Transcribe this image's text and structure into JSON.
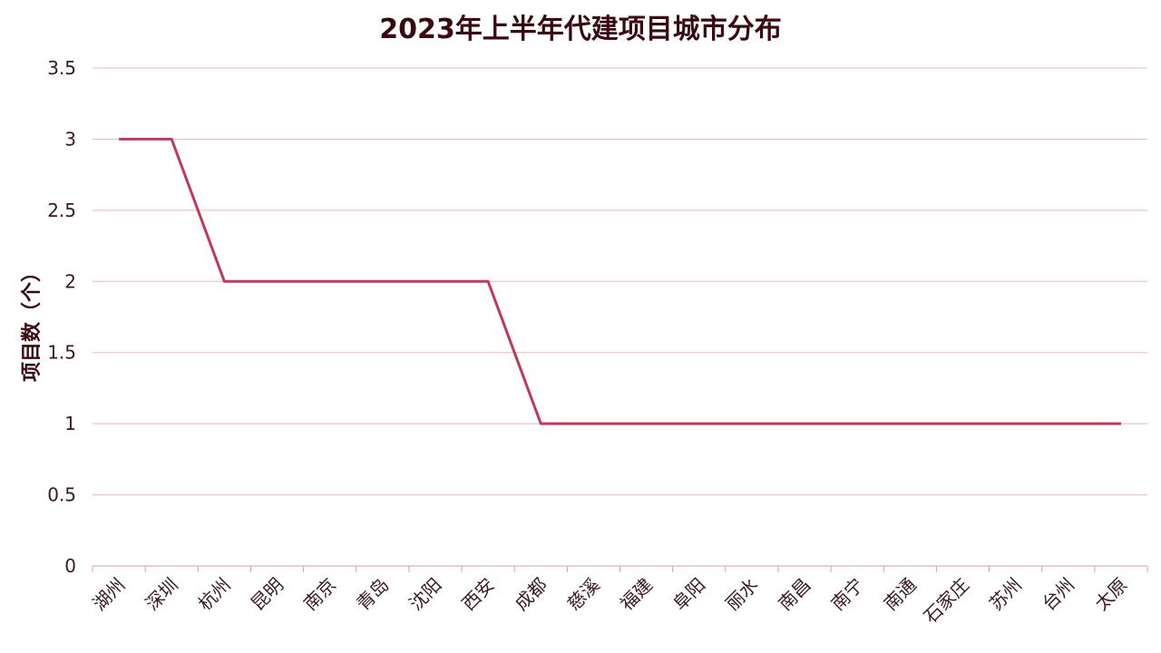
{
  "chart_data": {
    "type": "line",
    "title": "2023年上半年代建项目城市分布",
    "xlabel": "",
    "ylabel": "项目数（个）",
    "categories": [
      "湖州",
      "深圳",
      "杭州",
      "昆明",
      "南京",
      "青岛",
      "沈阳",
      "西安",
      "成都",
      "慈溪",
      "福建",
      "阜阳",
      "丽水",
      "南昌",
      "南宁",
      "南通",
      "石家庄",
      "苏州",
      "台州",
      "太原"
    ],
    "series": [
      {
        "values": [
          3,
          3,
          2,
          2,
          2,
          2,
          2,
          2,
          1,
          1,
          1,
          1,
          1,
          1,
          1,
          1,
          1,
          1,
          1,
          1
        ]
      }
    ],
    "ylim": [
      0,
      3.5
    ],
    "yticks": [
      "0",
      "0.5",
      "1",
      "1.5",
      "2",
      "2.5",
      "3",
      "3.5"
    ],
    "grid": true,
    "legend": "none",
    "colors": {
      "line": "#c0395a",
      "grid": "#e8b8b8",
      "axis": "#d9a0a0"
    }
  }
}
